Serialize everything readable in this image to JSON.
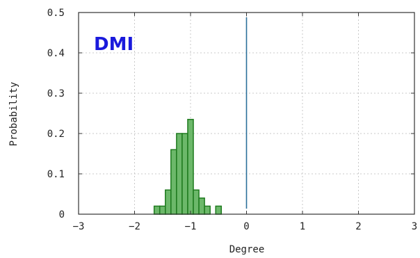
{
  "chart_data": {
    "type": "bar",
    "title": "",
    "annotation_text": "DMI",
    "xlabel": "Degree",
    "ylabel": "Probability",
    "xlim": [
      -3,
      3
    ],
    "ylim": [
      0,
      0.5
    ],
    "x_ticks": [
      -3,
      -2,
      -1,
      0,
      1,
      2,
      3
    ],
    "x_tick_labels": [
      "−3",
      "−2",
      "−1",
      "0",
      "1",
      "2",
      "3"
    ],
    "y_ticks": [
      0,
      0.1,
      0.2,
      0.3,
      0.4,
      0.5
    ],
    "y_tick_labels": [
      "0",
      "0.1",
      "0.2",
      "0.3",
      "0.4",
      "0.5"
    ],
    "grid": true,
    "bin_width": 0.1,
    "bins": [
      {
        "x": -1.6,
        "value": 0.02
      },
      {
        "x": -1.5,
        "value": 0.02
      },
      {
        "x": -1.4,
        "value": 0.06
      },
      {
        "x": -1.3,
        "value": 0.16
      },
      {
        "x": -1.2,
        "value": 0.2
      },
      {
        "x": -1.1,
        "value": 0.2
      },
      {
        "x": -1.0,
        "value": 0.235
      },
      {
        "x": -0.9,
        "value": 0.06
      },
      {
        "x": -0.8,
        "value": 0.04
      },
      {
        "x": -0.7,
        "value": 0.02
      },
      {
        "x": -0.5,
        "value": 0.02
      }
    ],
    "reference_line_x": 0.0,
    "colors": {
      "bar_fill": "#6cb86a",
      "bar_stroke": "#1e7a1e",
      "reference_line": "#2a6f9a",
      "annotation": "#1a1adc",
      "grid": "#c8c8c8",
      "axis": "#333333"
    }
  }
}
